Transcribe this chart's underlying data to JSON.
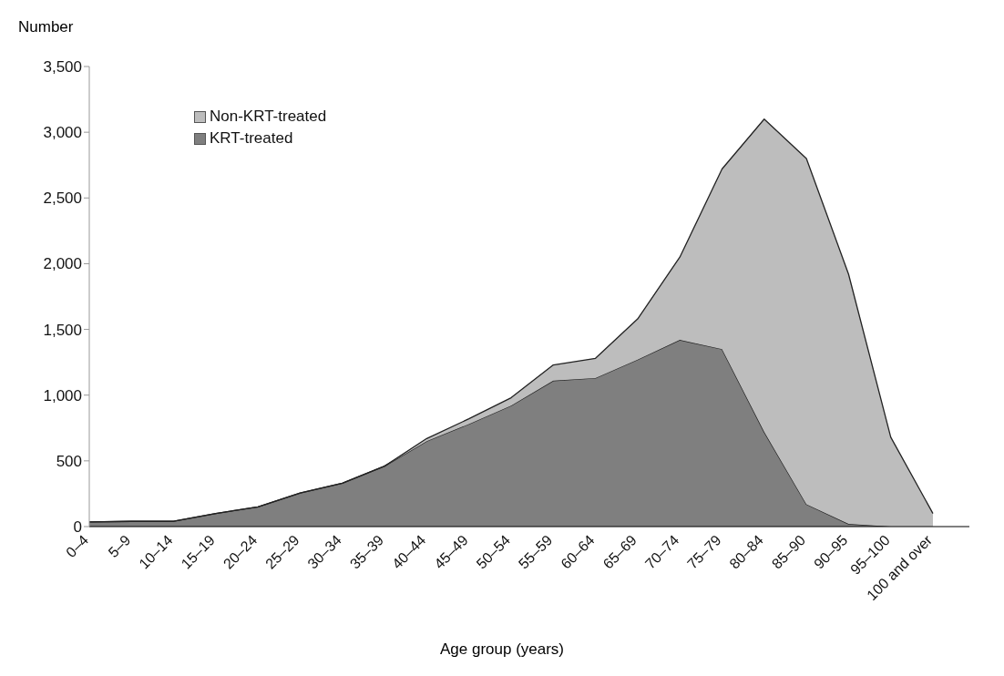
{
  "chart_data": {
    "type": "area",
    "stacked": true,
    "ylabel": "Number",
    "xlabel": "Age group (years)",
    "categories": [
      "0–4",
      "5–9",
      "10–14",
      "15–19",
      "20–24",
      "25–29",
      "30–34",
      "35–39",
      "40–44",
      "45–49",
      "50–54",
      "55–59",
      "60–64",
      "65–69",
      "70–74",
      "75–79",
      "80–84",
      "85–90",
      "90–95",
      "95–100",
      "100 and over"
    ],
    "series": [
      {
        "name": "KRT-treated",
        "color": "#7f7f7f",
        "values": [
          35,
          40,
          40,
          100,
          150,
          255,
          330,
          460,
          650,
          780,
          920,
          1110,
          1130,
          1270,
          1420,
          1350,
          720,
          170,
          20,
          0,
          0
        ]
      },
      {
        "name": "Non-KRT-treated",
        "color": "#bdbdbd",
        "values": [
          0,
          0,
          0,
          0,
          0,
          0,
          0,
          0,
          20,
          40,
          60,
          120,
          150,
          310,
          630,
          1370,
          2380,
          2630,
          1900,
          680,
          100
        ]
      }
    ],
    "ylim": [
      0,
      3500
    ],
    "yticks": [
      0,
      500,
      {
        "value": 1000,
        "label": "1,000"
      },
      {
        "value": 1500,
        "label": "1,500"
      },
      {
        "value": 2000,
        "label": "2,000"
      },
      {
        "value": 2500,
        "label": "2,500"
      },
      {
        "value": 3000,
        "label": "3,000"
      },
      {
        "value": 3500,
        "label": "3,500"
      }
    ],
    "grid": false,
    "legend": "top left"
  }
}
